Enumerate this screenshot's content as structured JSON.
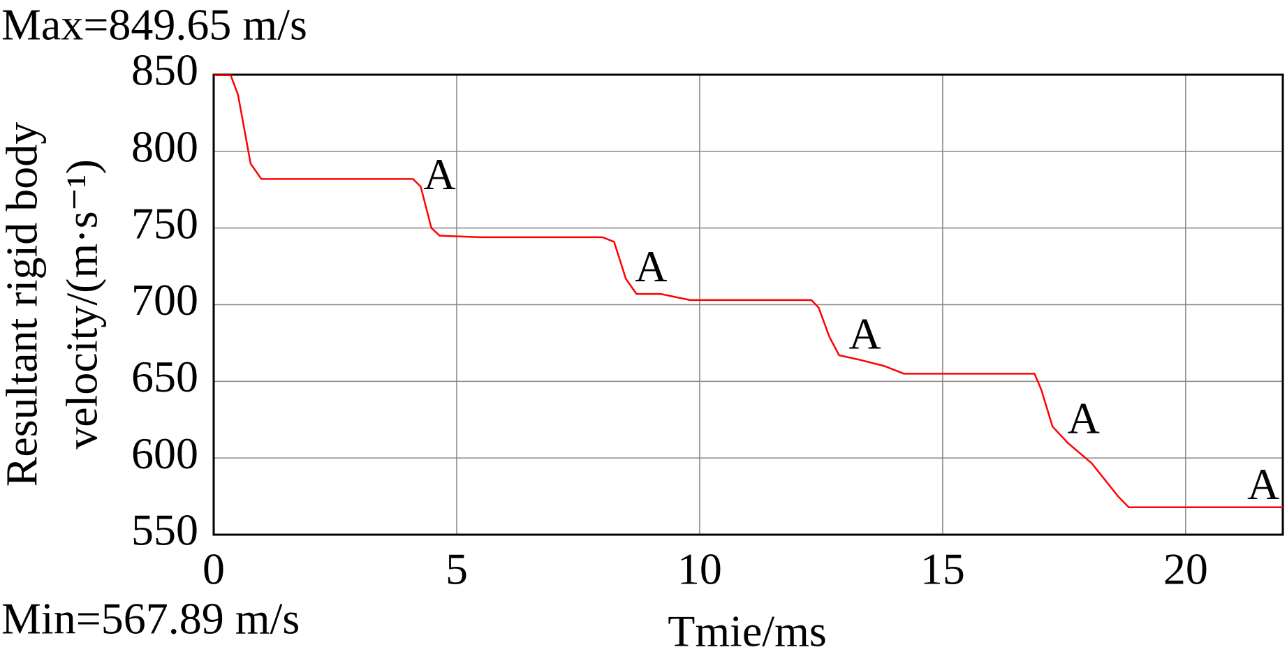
{
  "chart_data": {
    "type": "line",
    "x_label": "Tmie/ms",
    "y_label": [
      "Resultant rigid body",
      "velocity/(m·s⁻¹)"
    ],
    "max_note": "Max=849.65 m/s",
    "min_note": "Min=567.89 m/s",
    "xlim": [
      0,
      22
    ],
    "xticks": [
      0,
      5,
      10,
      15,
      20
    ],
    "ylim": [
      550,
      850
    ],
    "yticks": [
      550,
      600,
      650,
      700,
      750,
      800,
      850
    ],
    "grid": true,
    "series": [
      {
        "color": "#ff0000",
        "x": [
          0,
          0.35,
          0.5,
          0.76,
          0.98,
          4.1,
          4.26,
          4.48,
          4.65,
          5.5,
          8.0,
          8.24,
          8.48,
          8.7,
          9.2,
          9.8,
          12.3,
          12.45,
          12.67,
          12.87,
          13.3,
          13.8,
          14.2,
          16.89,
          17.03,
          17.26,
          17.57,
          18.07,
          18.61,
          18.83,
          22
        ],
        "values": [
          849.65,
          849.65,
          837,
          792,
          782,
          782,
          777,
          750,
          745,
          744,
          744,
          741,
          717,
          707,
          707,
          703,
          703,
          698,
          679,
          667,
          664,
          660,
          655,
          655,
          644.6,
          620.6,
          610,
          596.5,
          575,
          567.89,
          567.89
        ]
      }
    ],
    "annotations": [
      {
        "text": "A",
        "x": 4.65,
        "y": 782
      },
      {
        "text": "A",
        "x": 9.0,
        "y": 722
      },
      {
        "text": "A",
        "x": 13.4,
        "y": 678
      },
      {
        "text": "A",
        "x": 17.9,
        "y": 623
      },
      {
        "text": "A",
        "x": 21.6,
        "y": 580
      }
    ]
  }
}
